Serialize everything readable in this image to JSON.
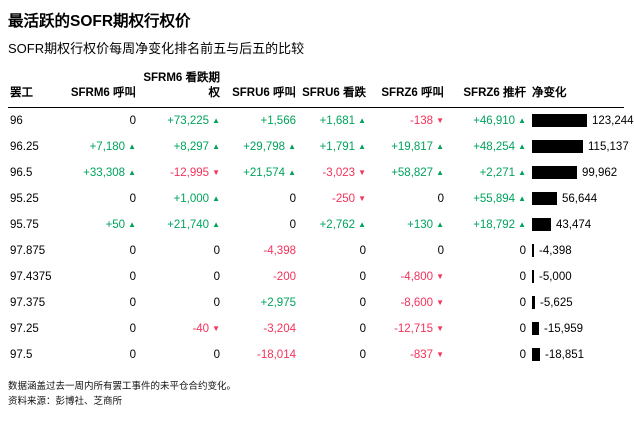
{
  "colors": {
    "up": "#00A35C",
    "down": "#F5325B",
    "bar": "#000000"
  },
  "footer": {
    "note": "数据涵盖过去一周内所有罢工事件的未平仓合约变化。",
    "source": "资料来源：彭博社、芝商所"
  },
  "chart_data": {
    "type": "table",
    "title": "最活跃的SOFR期权行权价",
    "subtitle": "SOFR期权行权价每周净变化排名前五与后五的比较",
    "columns": [
      "罢工",
      "SFRM6 呼叫",
      "SFRM6 看跌期权",
      "SFRU6 呼叫",
      "SFRU6 看跌",
      "SFRZ6 呼叫",
      "SFRZ6 推杆",
      "净变化"
    ],
    "net_change_axis_max": 123244,
    "rows": [
      {
        "strike": "96",
        "cells": [
          {
            "label": "0",
            "trend": "none",
            "arrow": false
          },
          {
            "label": "+73,225",
            "trend": "up",
            "arrow": true
          },
          {
            "label": "+1,566",
            "trend": "up",
            "arrow": false
          },
          {
            "label": "+1,681",
            "trend": "up",
            "arrow": true
          },
          {
            "label": "-138",
            "trend": "down",
            "arrow": true
          },
          {
            "label": "+46,910",
            "trend": "up",
            "arrow": true
          }
        ],
        "net_change": 123244,
        "net_change_label": "123,244"
      },
      {
        "strike": "96.25",
        "cells": [
          {
            "label": "+7,180",
            "trend": "up",
            "arrow": true
          },
          {
            "label": "+8,297",
            "trend": "up",
            "arrow": true
          },
          {
            "label": "+29,798",
            "trend": "up",
            "arrow": true
          },
          {
            "label": "+1,791",
            "trend": "up",
            "arrow": true
          },
          {
            "label": "+19,817",
            "trend": "up",
            "arrow": true
          },
          {
            "label": "+48,254",
            "trend": "up",
            "arrow": true
          }
        ],
        "net_change": 115137,
        "net_change_label": "115,137"
      },
      {
        "strike": "96.5",
        "cells": [
          {
            "label": "+33,308",
            "trend": "up",
            "arrow": true
          },
          {
            "label": "-12,995",
            "trend": "down",
            "arrow": true
          },
          {
            "label": "+21,574",
            "trend": "up",
            "arrow": true
          },
          {
            "label": "-3,023",
            "trend": "down",
            "arrow": true
          },
          {
            "label": "+58,827",
            "trend": "up",
            "arrow": true
          },
          {
            "label": "+2,271",
            "trend": "up",
            "arrow": true
          }
        ],
        "net_change": 99962,
        "net_change_label": "99,962"
      },
      {
        "strike": "95.25",
        "cells": [
          {
            "label": "0",
            "trend": "none",
            "arrow": false
          },
          {
            "label": "+1,000",
            "trend": "up",
            "arrow": true
          },
          {
            "label": "0",
            "trend": "none",
            "arrow": false
          },
          {
            "label": "-250",
            "trend": "down",
            "arrow": true
          },
          {
            "label": "0",
            "trend": "none",
            "arrow": false
          },
          {
            "label": "+55,894",
            "trend": "up",
            "arrow": true
          }
        ],
        "net_change": 56644,
        "net_change_label": "56,644"
      },
      {
        "strike": "95.75",
        "cells": [
          {
            "label": "+50",
            "trend": "up",
            "arrow": true
          },
          {
            "label": "+21,740",
            "trend": "up",
            "arrow": true
          },
          {
            "label": "0",
            "trend": "none",
            "arrow": false
          },
          {
            "label": "+2,762",
            "trend": "up",
            "arrow": true
          },
          {
            "label": "+130",
            "trend": "up",
            "arrow": true
          },
          {
            "label": "+18,792",
            "trend": "up",
            "arrow": true
          }
        ],
        "net_change": 43474,
        "net_change_label": "43,474"
      },
      {
        "strike": "97.875",
        "cells": [
          {
            "label": "0",
            "trend": "none",
            "arrow": false
          },
          {
            "label": "0",
            "trend": "none",
            "arrow": false
          },
          {
            "label": "-4,398",
            "trend": "down",
            "arrow": false
          },
          {
            "label": "0",
            "trend": "none",
            "arrow": false
          },
          {
            "label": "0",
            "trend": "none",
            "arrow": false
          },
          {
            "label": "0",
            "trend": "none",
            "arrow": false
          }
        ],
        "net_change": -4398,
        "net_change_label": "-4,398"
      },
      {
        "strike": "97.4375",
        "cells": [
          {
            "label": "0",
            "trend": "none",
            "arrow": false
          },
          {
            "label": "0",
            "trend": "none",
            "arrow": false
          },
          {
            "label": "-200",
            "trend": "down",
            "arrow": false
          },
          {
            "label": "0",
            "trend": "none",
            "arrow": false
          },
          {
            "label": "-4,800",
            "trend": "down",
            "arrow": true
          },
          {
            "label": "0",
            "trend": "none",
            "arrow": false
          }
        ],
        "net_change": -5000,
        "net_change_label": "-5,000"
      },
      {
        "strike": "97.375",
        "cells": [
          {
            "label": "0",
            "trend": "none",
            "arrow": false
          },
          {
            "label": "0",
            "trend": "none",
            "arrow": false
          },
          {
            "label": "+2,975",
            "trend": "up",
            "arrow": false
          },
          {
            "label": "0",
            "trend": "none",
            "arrow": false
          },
          {
            "label": "-8,600",
            "trend": "down",
            "arrow": true
          },
          {
            "label": "0",
            "trend": "none",
            "arrow": false
          }
        ],
        "net_change": -5625,
        "net_change_label": "-5,625"
      },
      {
        "strike": "97.25",
        "cells": [
          {
            "label": "0",
            "trend": "none",
            "arrow": false
          },
          {
            "label": "-40",
            "trend": "down",
            "arrow": true
          },
          {
            "label": "-3,204",
            "trend": "down",
            "arrow": false
          },
          {
            "label": "0",
            "trend": "none",
            "arrow": false
          },
          {
            "label": "-12,715",
            "trend": "down",
            "arrow": true
          },
          {
            "label": "0",
            "trend": "none",
            "arrow": false
          }
        ],
        "net_change": -15959,
        "net_change_label": "-15,959"
      },
      {
        "strike": "97.5",
        "cells": [
          {
            "label": "0",
            "trend": "none",
            "arrow": false
          },
          {
            "label": "0",
            "trend": "none",
            "arrow": false
          },
          {
            "label": "-18,014",
            "trend": "down",
            "arrow": false
          },
          {
            "label": "0",
            "trend": "none",
            "arrow": false
          },
          {
            "label": "-837",
            "trend": "down",
            "arrow": true
          },
          {
            "label": "0",
            "trend": "none",
            "arrow": false
          }
        ],
        "net_change": -18851,
        "net_change_label": "-18,851"
      }
    ]
  }
}
